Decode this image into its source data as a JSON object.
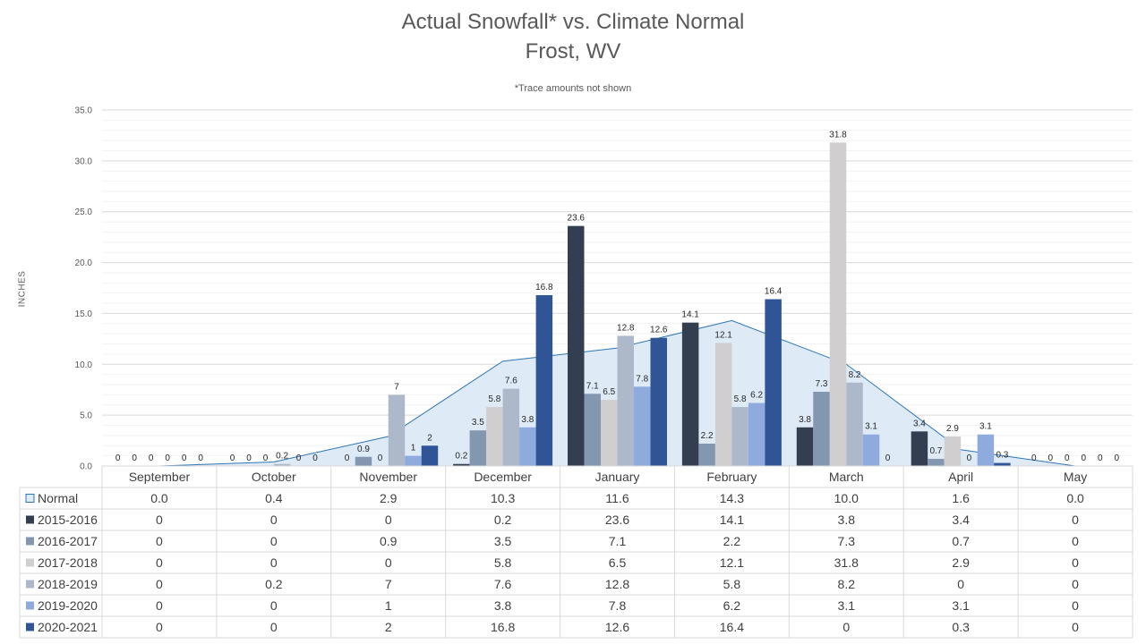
{
  "chart_data": {
    "type": "bar",
    "title": "Actual Snowfall* vs. Climate Normal",
    "subtitle": "Frost, WV",
    "annotation": "*Trace amounts not shown",
    "ylabel": "INCHES",
    "ylim": [
      0,
      35
    ],
    "yticks": [
      "0.0",
      "5.0",
      "10.0",
      "15.0",
      "20.0",
      "25.0",
      "30.0",
      "35.0"
    ],
    "grid": true,
    "legend": "data table below chart",
    "categories": [
      "September",
      "October",
      "November",
      "December",
      "January",
      "February",
      "March",
      "April",
      "May"
    ],
    "normal": {
      "name": "Normal",
      "type": "area",
      "color": "#DEEBF7",
      "line_color": "#2E75B6",
      "values": [
        0.0,
        0.4,
        2.9,
        10.3,
        11.6,
        14.3,
        10.0,
        1.6,
        0.0
      ],
      "table_values": [
        "0.0",
        "0.4",
        "2.9",
        "10.3",
        "11.6",
        "14.3",
        "10.0",
        "1.6",
        "0.0"
      ]
    },
    "series": [
      {
        "name": "2015-2016",
        "color": "#333F50",
        "values": [
          0,
          0,
          0,
          0.2,
          23.6,
          14.1,
          3.8,
          3.4,
          0
        ]
      },
      {
        "name": "2016-2017",
        "color": "#8497B0",
        "values": [
          0,
          0,
          0.9,
          3.5,
          7.1,
          2.2,
          7.3,
          0.7,
          0
        ]
      },
      {
        "name": "2017-2018",
        "color": "#D0CECE",
        "values": [
          0,
          0,
          0,
          5.8,
          6.5,
          12.1,
          31.8,
          2.9,
          0
        ]
      },
      {
        "name": "2018-2019",
        "color": "#ADB9CA",
        "values": [
          0,
          0.2,
          7,
          7.6,
          12.8,
          5.8,
          8.2,
          0,
          0
        ]
      },
      {
        "name": "2019-2020",
        "color": "#8FAADC",
        "values": [
          0,
          0,
          1,
          3.8,
          7.8,
          6.2,
          3.1,
          3.1,
          0
        ]
      },
      {
        "name": "2020-2021",
        "color": "#2F5597",
        "values": [
          0,
          0,
          2,
          16.8,
          12.6,
          16.4,
          0,
          0.3,
          0
        ]
      }
    ]
  }
}
